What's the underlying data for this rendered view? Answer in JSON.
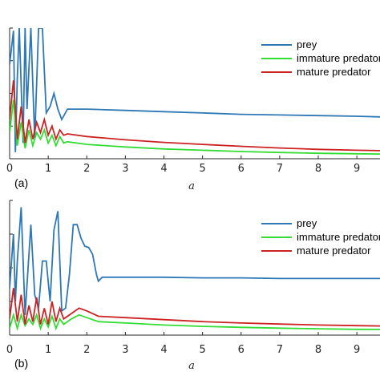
{
  "chart_data": [
    {
      "type": "line",
      "panel_label": "(a)",
      "xlabel": "a",
      "xlim": [
        0,
        9.6
      ],
      "ylim": [
        0,
        1
      ],
      "xticks": [
        "0",
        "1",
        "2",
        "3",
        "4",
        "5",
        "6",
        "7",
        "8",
        "9"
      ],
      "legend_position": "top-right",
      "series": [
        {
          "name": "prey",
          "color": "#2e78b6",
          "points": [
            [
              0,
              0.72
            ],
            [
              0.1,
              0.98
            ],
            [
              0.15,
              0.05
            ],
            [
              0.2,
              0.62
            ],
            [
              0.25,
              1.0
            ],
            [
              0.35,
              0.12
            ],
            [
              0.4,
              1.0
            ],
            [
              0.45,
              0.38
            ],
            [
              0.55,
              1.0
            ],
            [
              0.65,
              0.15
            ],
            [
              0.75,
              1.0
            ],
            [
              0.85,
              1.0
            ],
            [
              0.95,
              0.35
            ],
            [
              1.05,
              0.4
            ],
            [
              1.15,
              0.5
            ],
            [
              1.25,
              0.38
            ],
            [
              1.35,
              0.3
            ],
            [
              1.5,
              0.38
            ],
            [
              2,
              0.38
            ],
            [
              3,
              0.37
            ],
            [
              4,
              0.36
            ],
            [
              5,
              0.35
            ],
            [
              6,
              0.34
            ],
            [
              7,
              0.335
            ],
            [
              8,
              0.33
            ],
            [
              9,
              0.325
            ],
            [
              9.6,
              0.32
            ]
          ]
        },
        {
          "name": "immature predator",
          "color": "#33dd33",
          "points": [
            [
              0,
              0.2
            ],
            [
              0.1,
              0.45
            ],
            [
              0.2,
              0.1
            ],
            [
              0.3,
              0.28
            ],
            [
              0.4,
              0.08
            ],
            [
              0.5,
              0.22
            ],
            [
              0.6,
              0.1
            ],
            [
              0.7,
              0.2
            ],
            [
              0.8,
              0.15
            ],
            [
              0.9,
              0.22
            ],
            [
              1.0,
              0.12
            ],
            [
              1.1,
              0.18
            ],
            [
              1.2,
              0.1
            ],
            [
              1.3,
              0.17
            ],
            [
              1.4,
              0.12
            ],
            [
              1.5,
              0.13
            ],
            [
              2,
              0.11
            ],
            [
              3,
              0.09
            ],
            [
              4,
              0.075
            ],
            [
              5,
              0.065
            ],
            [
              6,
              0.055
            ],
            [
              7,
              0.048
            ],
            [
              8,
              0.042
            ],
            [
              9,
              0.038
            ],
            [
              9.6,
              0.036
            ]
          ]
        },
        {
          "name": "mature predator",
          "color": "#cc2222",
          "points": [
            [
              0,
              0.3
            ],
            [
              0.1,
              0.6
            ],
            [
              0.2,
              0.15
            ],
            [
              0.3,
              0.4
            ],
            [
              0.4,
              0.12
            ],
            [
              0.5,
              0.3
            ],
            [
              0.6,
              0.15
            ],
            [
              0.7,
              0.28
            ],
            [
              0.8,
              0.2
            ],
            [
              0.9,
              0.3
            ],
            [
              1.0,
              0.18
            ],
            [
              1.1,
              0.25
            ],
            [
              1.2,
              0.15
            ],
            [
              1.3,
              0.22
            ],
            [
              1.4,
              0.18
            ],
            [
              1.5,
              0.19
            ],
            [
              2,
              0.17
            ],
            [
              3,
              0.145
            ],
            [
              4,
              0.125
            ],
            [
              5,
              0.11
            ],
            [
              6,
              0.095
            ],
            [
              7,
              0.082
            ],
            [
              8,
              0.072
            ],
            [
              9,
              0.065
            ],
            [
              9.6,
              0.062
            ]
          ]
        }
      ]
    },
    {
      "type": "line",
      "panel_label": "(b)",
      "xlabel": "a",
      "xlim": [
        0,
        9.6
      ],
      "ylim": [
        0,
        1
      ],
      "xticks": [
        "0",
        "1",
        "2",
        "3",
        "4",
        "5",
        "6",
        "7",
        "8",
        "9"
      ],
      "legend_position": "top-right",
      "series": [
        {
          "name": "prey",
          "color": "#2e78b6",
          "points": [
            [
              0,
              0.35
            ],
            [
              0.1,
              0.75
            ],
            [
              0.15,
              0.25
            ],
            [
              0.2,
              0.55
            ],
            [
              0.3,
              0.95
            ],
            [
              0.4,
              0.15
            ],
            [
              0.5,
              0.6
            ],
            [
              0.55,
              0.82
            ],
            [
              0.65,
              0.3
            ],
            [
              0.75,
              0.2
            ],
            [
              0.85,
              0.55
            ],
            [
              0.95,
              0.55
            ],
            [
              1.05,
              0.25
            ],
            [
              1.15,
              0.78
            ],
            [
              1.25,
              0.92
            ],
            [
              1.35,
              0.18
            ],
            [
              1.45,
              0.2
            ],
            [
              1.55,
              0.45
            ],
            [
              1.65,
              0.82
            ],
            [
              1.75,
              0.82
            ],
            [
              1.85,
              0.72
            ],
            [
              1.95,
              0.66
            ],
            [
              2.05,
              0.65
            ],
            [
              2.15,
              0.6
            ],
            [
              2.25,
              0.45
            ],
            [
              2.3,
              0.4
            ],
            [
              2.4,
              0.43
            ],
            [
              3,
              0.43
            ],
            [
              4,
              0.43
            ],
            [
              5,
              0.425
            ],
            [
              6,
              0.425
            ],
            [
              7,
              0.42
            ],
            [
              8,
              0.42
            ],
            [
              9,
              0.42
            ],
            [
              9.6,
              0.42
            ]
          ]
        },
        {
          "name": "immature predator",
          "color": "#33dd33",
          "points": [
            [
              0,
              0.05
            ],
            [
              0.1,
              0.15
            ],
            [
              0.2,
              0.05
            ],
            [
              0.3,
              0.15
            ],
            [
              0.4,
              0.07
            ],
            [
              0.5,
              0.12
            ],
            [
              0.6,
              0.08
            ],
            [
              0.7,
              0.15
            ],
            [
              0.8,
              0.05
            ],
            [
              0.9,
              0.12
            ],
            [
              1.0,
              0.06
            ],
            [
              1.1,
              0.14
            ],
            [
              1.2,
              0.05
            ],
            [
              1.3,
              0.12
            ],
            [
              1.4,
              0.08
            ],
            [
              1.6,
              0.12
            ],
            [
              1.8,
              0.15
            ],
            [
              2,
              0.13
            ],
            [
              2.3,
              0.1
            ],
            [
              3,
              0.09
            ],
            [
              4,
              0.075
            ],
            [
              5,
              0.065
            ],
            [
              6,
              0.058
            ],
            [
              7,
              0.052
            ],
            [
              8,
              0.047
            ],
            [
              9,
              0.043
            ],
            [
              9.6,
              0.042
            ]
          ]
        },
        {
          "name": "mature predator",
          "color": "#cc2222",
          "points": [
            [
              0,
              0.12
            ],
            [
              0.1,
              0.35
            ],
            [
              0.2,
              0.1
            ],
            [
              0.3,
              0.3
            ],
            [
              0.4,
              0.08
            ],
            [
              0.5,
              0.22
            ],
            [
              0.6,
              0.1
            ],
            [
              0.7,
              0.28
            ],
            [
              0.8,
              0.08
            ],
            [
              0.9,
              0.2
            ],
            [
              1.0,
              0.08
            ],
            [
              1.1,
              0.25
            ],
            [
              1.2,
              0.1
            ],
            [
              1.3,
              0.2
            ],
            [
              1.4,
              0.12
            ],
            [
              1.6,
              0.16
            ],
            [
              1.8,
              0.2
            ],
            [
              2,
              0.18
            ],
            [
              2.3,
              0.14
            ],
            [
              3,
              0.13
            ],
            [
              4,
              0.115
            ],
            [
              5,
              0.1
            ],
            [
              6,
              0.09
            ],
            [
              7,
              0.082
            ],
            [
              8,
              0.075
            ],
            [
              9,
              0.07
            ],
            [
              9.6,
              0.068
            ]
          ]
        }
      ]
    }
  ]
}
